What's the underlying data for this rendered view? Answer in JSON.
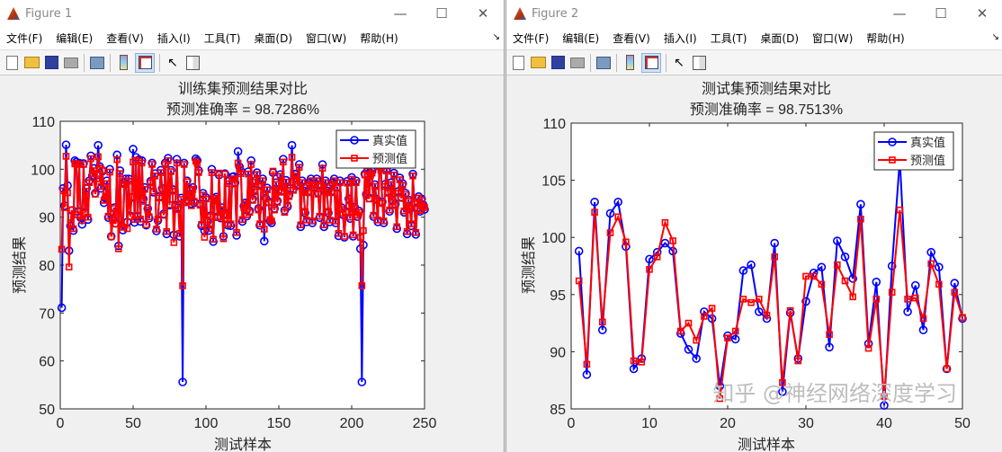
{
  "windows": [
    {
      "title": "Figure 1",
      "menu": [
        "文件(F)",
        "编辑(E)",
        "查看(V)",
        "插入(I)",
        "工具(T)",
        "桌面(D)",
        "窗口(W)",
        "帮助(H)"
      ],
      "toolbar": [
        "new-figure-icon",
        "open-icon",
        "save-icon",
        "print-icon",
        "link-icon",
        "colorbar-icon",
        "legend-icon",
        "pointer-icon",
        "property-inspector-icon"
      ]
    },
    {
      "title": "Figure 2",
      "menu": [
        "文件(F)",
        "编辑(E)",
        "查看(V)",
        "插入(I)",
        "工具(T)",
        "桌面(D)",
        "窗口(W)",
        "帮助(H)"
      ],
      "toolbar": [
        "new-figure-icon",
        "open-icon",
        "save-icon",
        "print-icon",
        "link-icon",
        "colorbar-icon",
        "legend-icon",
        "pointer-icon",
        "property-inspector-icon"
      ]
    }
  ],
  "watermark": "知乎 @神经网络深度学习",
  "colors": {
    "true": "#0000ff",
    "pred": "#ff0000"
  },
  "chart_data": [
    {
      "type": "line",
      "title": "训练集预测结果对比",
      "subtitle": "预测准确率 = 98.7286%",
      "xlabel": "测试样本",
      "ylabel": "预测结果",
      "xlim": [
        0,
        250
      ],
      "ylim": [
        50,
        110
      ],
      "xticks": [
        0,
        50,
        100,
        150,
        200,
        250
      ],
      "yticks": [
        50,
        60,
        70,
        80,
        90,
        100,
        110
      ],
      "legend_position": "top-right",
      "grid": false,
      "series": [
        {
          "name": "真实值",
          "marker": "circle",
          "color": "#0000ff",
          "values": [
            71.1,
            96.0,
            92.4,
            105.1,
            96.6,
            83.0,
            88.2,
            91.4,
            87.2,
            101.8,
            101.5,
            91.2,
            101.3,
            89.9,
            88.5,
            101.2,
            91.0,
            96.0,
            89.5,
            97.6,
            102.8,
            98.6,
            100.2,
            95.0,
            98.8,
            105.0,
            100.6,
            96.0,
            99.6,
            93.0,
            94.0,
            97.6,
            89.9,
            100.0,
            86.0,
            89.7,
            92.0,
            88.7,
            103.0,
            84.0,
            99.7,
            88.1,
            87.3,
            97.2,
            98.0,
            89.0,
            98.0,
            90.3,
            94.1,
            104.2,
            88.9,
            102.5,
            90.1,
            102.0,
            89.1,
            101.8,
            93.8,
            96.2,
            88.3,
            91.8,
            89.8,
            97.5,
            101.3,
            95.2,
            99.1,
            87.1,
            89.3,
            94.3,
            99.8,
            96.0,
            90.7,
            101.3,
            86.5,
            102.3,
            92.5,
            99.8,
            95.8,
            86.3,
            92.5,
            102.1,
            92.0,
            86.0,
            94.0,
            55.6,
            101.3,
            93.2,
            97.6,
            93.5,
            95.8,
            92.8,
            96.2,
            93.0,
            102.2,
            101.8,
            99.7,
            92.8,
            88.2,
            95.0,
            87.2,
            94.1,
            89.1,
            87.2,
            90.3,
            100.0,
            84.9,
            93.8,
            94.2,
            90.1,
            98.8,
            89.8,
            92.0,
            86.0,
            99.1,
            90.7,
            88.3,
            97.6,
            88.2,
            98.4,
            98.5,
            97.2,
            86.2,
            103.7,
            100.5,
            99.6,
            89.1,
            92.3,
            93.0,
            90.2,
            99.5,
            91.3,
            101.8,
            93.8,
            95.7,
            97.6,
            99.3,
            91.8,
            88.3,
            96.8,
            98.0,
            85.0,
            94.0,
            96.1,
            93.2,
            89.2,
            88.8,
            99.3,
            91.8,
            97.2,
            93.4,
            95.7,
            98.9,
            95.5,
            102.1,
            91.4,
            97.7,
            92.2,
            94.6,
            96.0,
            105.0,
            95.9,
            99.0,
            99.0,
            96.8,
            101.0,
            88.0,
            97.6,
            95.5,
            90.9,
            89.0,
            95.4,
            97.2,
            98.0,
            88.8,
            96.3,
            97.0,
            98.0,
            95.1,
            89.9,
            96.8,
            101.0,
            88.0,
            97.6,
            95.5,
            90.9,
            89.0,
            95.4,
            97.2,
            98.0,
            88.8,
            96.3,
            86.1,
            97.6,
            92.0,
            90.5,
            85.8,
            91.2,
            97.5,
            93.8,
            89.7,
            98.3,
            86.0,
            92.1,
            97.6,
            90.1,
            91.3,
            83.4,
            55.6,
            84.2,
            99.0,
            94.8,
            100.2,
            94.0,
            99.2,
            99.6,
            90.1,
            96.8,
            93.8,
            89.0,
            101.6,
            100.3,
            93.2,
            88.8,
            96.9,
            100.1,
            95.3,
            91.2,
            97.2,
            93.5,
            99.2,
            92.7,
            87.6,
            95.4,
            98.2,
            94.2,
            97.0,
            91.0,
            95.0,
            86.5,
            93.6,
            91.7,
            88.2,
            99.0,
            93.1,
            86.4,
            92.0,
            94.3,
            91.2,
            93.8,
            92.6,
            91.6
          ]
        },
        {
          "name": "预测值",
          "marker": "square",
          "color": "#ff0000",
          "values": [
            83.3,
            95.5,
            92.0,
            102.7,
            95.1,
            79.6,
            88.8,
            91.5,
            87.6,
            101.1,
            101.2,
            90.5,
            101.0,
            90.3,
            89.3,
            101.0,
            90.8,
            95.4,
            90.0,
            97.2,
            102.2,
            99.1,
            99.7,
            94.8,
            98.0,
            102.6,
            100.2,
            96.4,
            99.8,
            93.5,
            94.3,
            97.0,
            90.2,
            99.4,
            85.9,
            89.3,
            91.8,
            88.6,
            102.0,
            83.4,
            99.1,
            88.5,
            87.9,
            96.8,
            97.6,
            87.6,
            97.5,
            90.1,
            94.2,
            101.5,
            89.5,
            101.9,
            90.4,
            101.7,
            89.6,
            101.3,
            93.3,
            95.8,
            88.4,
            91.5,
            90.1,
            97.2,
            101.0,
            95.4,
            98.6,
            87.5,
            89.6,
            94.0,
            99.3,
            95.7,
            90.4,
            101.0,
            87.0,
            101.8,
            92.6,
            99.5,
            95.4,
            84.7,
            92.3,
            101.3,
            91.6,
            86.6,
            93.7,
            75.7,
            101.0,
            93.0,
            97.4,
            93.2,
            95.6,
            92.4,
            95.8,
            93.3,
            101.7,
            101.2,
            99.3,
            92.5,
            88.5,
            94.6,
            85.8,
            93.8,
            89.4,
            87.6,
            90.1,
            99.3,
            85.4,
            93.5,
            93.9,
            89.9,
            99.2,
            90.1,
            91.6,
            85.5,
            99.0,
            90.3,
            88.6,
            97.0,
            88.6,
            97.9,
            98.0,
            96.9,
            86.8,
            101.3,
            100.0,
            99.1,
            89.5,
            92.0,
            92.7,
            90.5,
            99.0,
            91.0,
            101.0,
            93.5,
            95.3,
            97.3,
            98.9,
            91.5,
            88.6,
            96.4,
            97.6,
            87.5,
            93.8,
            95.7,
            93.0,
            89.5,
            89.2,
            99.6,
            91.5,
            96.8,
            93.1,
            95.4,
            98.5,
            95.2,
            101.5,
            91.0,
            97.3,
            92.5,
            94.3,
            95.6,
            102.5,
            95.6,
            98.6,
            98.5,
            96.4,
            100.4,
            88.4,
            97.2,
            95.2,
            91.2,
            89.4,
            95.1,
            96.8,
            97.6,
            89.2,
            96.0,
            96.6,
            97.6,
            94.8,
            90.2,
            96.4,
            100.2,
            88.4,
            97.2,
            95.2,
            91.2,
            89.4,
            95.1,
            96.8,
            97.6,
            89.2,
            96.0,
            86.6,
            97.2,
            91.6,
            90.8,
            86.0,
            91.0,
            97.1,
            93.4,
            90.0,
            97.9,
            86.3,
            91.8,
            97.2,
            90.4,
            91.0,
            85.8,
            75.7,
            87.2,
            98.8,
            94.5,
            99.6,
            93.8,
            98.8,
            99.2,
            90.4,
            96.4,
            93.5,
            89.4,
            100.5,
            99.8,
            92.9,
            89.2,
            96.4,
            99.6,
            95.0,
            91.5,
            96.8,
            93.2,
            98.8,
            92.4,
            88.0,
            95.0,
            97.8,
            93.9,
            96.6,
            91.3,
            94.7,
            87.0,
            93.3,
            91.9,
            88.6,
            98.6,
            92.8,
            86.8,
            91.7,
            94.0,
            91.4,
            93.5,
            92.3,
            92.0
          ]
        }
      ]
    },
    {
      "type": "line",
      "title": "测试集预测结果对比",
      "subtitle": "预测准确率 = 98.7513%",
      "xlabel": "测试样本",
      "ylabel": "预测结果",
      "xlim": [
        0,
        50
      ],
      "ylim": [
        85,
        110
      ],
      "xticks": [
        0,
        10,
        20,
        30,
        40,
        50
      ],
      "yticks": [
        85,
        90,
        95,
        100,
        105,
        110
      ],
      "legend_position": "top-right",
      "grid": false,
      "series": [
        {
          "name": "真实值",
          "marker": "circle",
          "color": "#0000ff",
          "values": [
            98.8,
            88.0,
            103.1,
            91.9,
            102.1,
            103.1,
            99.2,
            88.5,
            89.4,
            98.1,
            98.7,
            99.5,
            98.8,
            91.6,
            90.2,
            89.4,
            93.5,
            92.9,
            87.0,
            91.4,
            91.1,
            97.1,
            97.6,
            93.5,
            92.9,
            99.5,
            86.5,
            93.4,
            89.4,
            94.4,
            96.9,
            97.4,
            90.4,
            99.7,
            98.3,
            96.4,
            102.9,
            90.7,
            96.1,
            85.3,
            97.5,
            106.8,
            93.5,
            95.8,
            91.9,
            98.7,
            97.4,
            88.5,
            96.0,
            92.9
          ]
        },
        {
          "name": "预测值",
          "marker": "square",
          "color": "#ff0000",
          "values": [
            96.2,
            88.9,
            102.2,
            92.6,
            100.4,
            101.8,
            99.6,
            89.2,
            89.1,
            97.2,
            98.3,
            101.3,
            99.7,
            91.8,
            92.5,
            91.0,
            93.1,
            93.8,
            85.9,
            91.2,
            91.8,
            94.6,
            94.3,
            94.6,
            93.2,
            98.3,
            87.3,
            93.6,
            89.2,
            96.6,
            96.6,
            95.9,
            91.5,
            97.6,
            96.2,
            94.8,
            101.6,
            90.3,
            94.6,
            86.1,
            95.2,
            102.4,
            94.6,
            94.7,
            92.9,
            97.7,
            95.9,
            88.5,
            95.2,
            93.0
          ]
        }
      ]
    }
  ]
}
